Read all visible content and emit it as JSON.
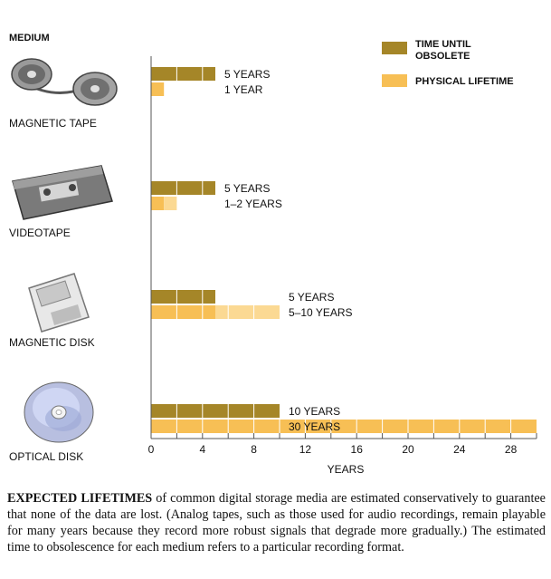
{
  "chart_data": {
    "type": "bar",
    "orientation": "horizontal",
    "header": "MEDIUM",
    "xlabel": "YEARS",
    "xlim": [
      0,
      30
    ],
    "xticks": [
      0,
      4,
      8,
      12,
      16,
      20,
      24,
      28
    ],
    "categories": [
      "MAGNETIC TAPE",
      "VIDEOTAPE",
      "MAGNETIC DISK",
      "OPTICAL DISK"
    ],
    "series": [
      {
        "name": "TIME UNTIL OBSOLETE",
        "color": "#a58628",
        "values": [
          5,
          5,
          5,
          10
        ],
        "labels": [
          "5 YEARS",
          "5 YEARS",
          "5 YEARS",
          "10 YEARS"
        ]
      },
      {
        "name": "PHYSICAL LIFETIME",
        "color": "#f7bf55",
        "range_color": "#fbd993",
        "values": [
          1,
          1,
          5,
          30
        ],
        "values_max": [
          1,
          2,
          10,
          30
        ],
        "labels": [
          "1 YEAR",
          "1–2 YEARS",
          "5–10 YEARS",
          "30 YEARS"
        ]
      }
    ],
    "legend": [
      "TIME UNTIL OBSOLETE",
      "PHYSICAL LIFETIME"
    ],
    "legend_position": "top-right",
    "icons": [
      "reel-tape-icon",
      "videocassette-icon",
      "floppy-disk-icon",
      "optical-disc-icon"
    ]
  },
  "caption": {
    "lead": "EXPECTED LIFETIMES",
    "body": " of common digital storage media are estimated conservatively to guarantee that none of the data are lost. (Analog tapes, such as those used for audio recordings, remain playable for many years because they record more robust signals that degrade more gradually.) The estimated time to obsolescence for each medium refers to a particular recording format."
  }
}
